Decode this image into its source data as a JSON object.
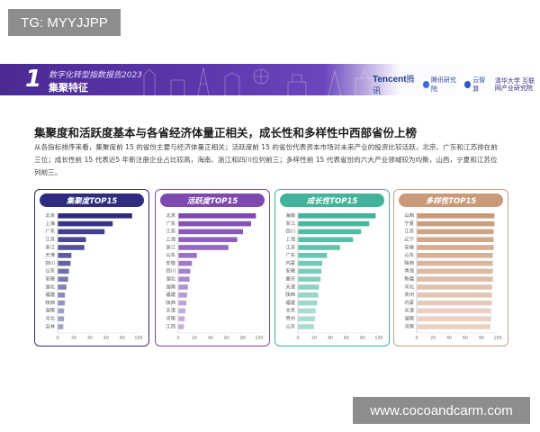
{
  "watermarks": {
    "top": "TG: MYYJJPP",
    "bottom": "www.cocoandcarm.com"
  },
  "banner": {
    "number": "1",
    "subtitle": "数字化转型指数报告2023",
    "title": "集聚特征",
    "logos": {
      "tencent": "Tencent",
      "tencent_cn": "腾讯",
      "lab": "腾讯研究院",
      "partner": "云智算",
      "seal": "清华大学 互联网产业研究院"
    }
  },
  "heading": "集聚度和活跃度基本与各省经济体量正相关，成长性和多样性中西部省份上榜",
  "description": "从各指标排序来看，集聚度前 15 的省份主要与经济体量正相关；活跃度前 15 的省份代表资本市场对未来产业的投资比较活跃，北京、广东和江苏排在前三位；成长性前 15 代表近5 年新注册企业占比较高，海南、浙江和四川位列前三；多样性前 15 代表省份的六大产业领域较为均衡，山西，宁夏和江苏位列前三。",
  "colors": {
    "banner": "#5b36ab",
    "p1": "#2e2c7e",
    "p2": "#7d48b0",
    "p3": "#41b39b",
    "p4": "#c99a7a"
  },
  "chart_data": [
    {
      "type": "bar",
      "orientation": "horizontal",
      "title": "集聚度TOP15",
      "color": "#2e2c7e",
      "xlim": [
        0,
        100
      ],
      "xticks": [
        0,
        20,
        40,
        60,
        80,
        100
      ],
      "categories": [
        "北京",
        "上海",
        "广东",
        "江苏",
        "浙江",
        "天津",
        "四川",
        "山东",
        "安徽",
        "湖北",
        "福建",
        "陕西",
        "湖南",
        "河北",
        "吉林"
      ],
      "values": [
        92,
        68,
        58,
        35,
        33,
        17,
        16,
        14,
        13,
        11,
        9,
        9,
        8,
        8,
        7
      ]
    },
    {
      "type": "bar",
      "orientation": "horizontal",
      "title": "活跃度TOP15",
      "color": "#7d48b0",
      "xlim": [
        0,
        100
      ],
      "xticks": [
        0,
        20,
        40,
        60,
        80,
        100
      ],
      "categories": [
        "北京",
        "广东",
        "江苏",
        "上海",
        "浙江",
        "山东",
        "安徽",
        "四川",
        "湖北",
        "湖南",
        "福建",
        "陕西",
        "天津",
        "河南",
        "江西"
      ],
      "values": [
        96,
        90,
        80,
        73,
        62,
        23,
        17,
        15,
        14,
        12,
        11,
        10,
        9,
        8,
        7
      ]
    },
    {
      "type": "bar",
      "orientation": "horizontal",
      "title": "成长性TOP15",
      "color": "#41b39b",
      "xlim": [
        0,
        100
      ],
      "xticks": [
        0,
        20,
        40,
        60,
        80,
        100
      ],
      "categories": [
        "海南",
        "浙江",
        "四川",
        "上海",
        "江苏",
        "广东",
        "内蒙",
        "安徽",
        "重庆",
        "天津",
        "陕西",
        "福建",
        "北京",
        "贵州",
        "山东"
      ],
      "values": [
        96,
        88,
        78,
        68,
        52,
        36,
        30,
        29,
        28,
        26,
        25,
        24,
        22,
        21,
        20
      ]
    },
    {
      "type": "bar",
      "orientation": "horizontal",
      "title": "多样性TOP15",
      "color": "#c99a7a",
      "xlim": [
        0,
        100
      ],
      "xticks": [
        0,
        20,
        40,
        60,
        80,
        100
      ],
      "categories": [
        "山西",
        "宁夏",
        "江苏",
        "辽宁",
        "安徽",
        "山东",
        "陕西",
        "青海",
        "新疆",
        "河北",
        "贵州",
        "内蒙",
        "天津",
        "湖南",
        "河南"
      ],
      "values": [
        96,
        96,
        95,
        95,
        95,
        94,
        94,
        94,
        94,
        93,
        93,
        93,
        92,
        92,
        91
      ]
    }
  ]
}
